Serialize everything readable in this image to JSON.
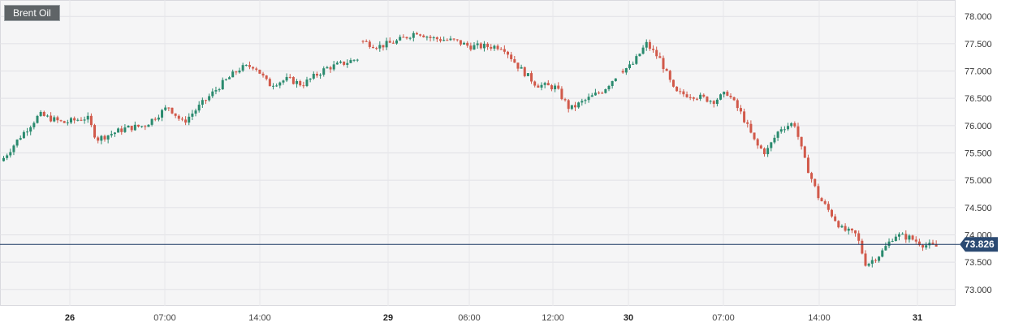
{
  "instrument": {
    "name": "Brent Oil"
  },
  "chart_data": {
    "type": "candlestick",
    "title": "Brent Oil",
    "ylim": [
      72.7,
      78.3
    ],
    "y_ticks": [
      73.0,
      73.5,
      74.0,
      74.5,
      75.0,
      75.5,
      76.0,
      76.5,
      77.0,
      77.5,
      78.0
    ],
    "y_tick_labels": [
      "73.000",
      "73.500",
      "74.000",
      "74.500",
      "75.000",
      "75.500",
      "76.000",
      "76.500",
      "77.000",
      "77.500",
      "78.000"
    ],
    "x_tick_labels": [
      "26",
      "07:00",
      "14:00",
      "29",
      "06:00",
      "12:00",
      "30",
      "07:00",
      "14:00",
      "31"
    ],
    "x_tick_bold": [
      true,
      false,
      false,
      true,
      false,
      false,
      true,
      false,
      false,
      true
    ],
    "last_price": 73.826,
    "last_price_label": "73.826",
    "grid": true,
    "colors": {
      "up": "#2a8a6e",
      "down": "#d1594a",
      "price_line": "#1d3a63",
      "price_tag": "#2b4a72"
    },
    "segments": [
      {
        "start": 0.0,
        "end": 0.376,
        "session": "26",
        "points": [
          [
            0,
            75.35
          ],
          [
            0.02,
            75.8
          ],
          [
            0.04,
            76.2
          ],
          [
            0.065,
            76.05
          ],
          [
            0.09,
            76.15
          ],
          [
            0.1,
            75.75
          ],
          [
            0.115,
            75.85
          ],
          [
            0.13,
            75.95
          ],
          [
            0.15,
            76.0
          ],
          [
            0.175,
            76.35
          ],
          [
            0.19,
            76.05
          ],
          [
            0.21,
            76.4
          ],
          [
            0.23,
            76.75
          ],
          [
            0.25,
            77.05
          ],
          [
            0.265,
            77.1
          ],
          [
            0.28,
            76.75
          ],
          [
            0.3,
            76.85
          ],
          [
            0.315,
            76.75
          ],
          [
            0.34,
            77.05
          ],
          [
            0.36,
            77.15
          ],
          [
            0.376,
            77.25
          ]
        ]
      },
      {
        "start": 0.376,
        "end": 0.648,
        "session": "29",
        "points": [
          [
            0.376,
            77.55
          ],
          [
            0.395,
            77.45
          ],
          [
            0.415,
            77.55
          ],
          [
            0.435,
            77.72
          ],
          [
            0.45,
            77.6
          ],
          [
            0.475,
            77.55
          ],
          [
            0.49,
            77.45
          ],
          [
            0.51,
            77.45
          ],
          [
            0.525,
            77.45
          ],
          [
            0.54,
            77.1
          ],
          [
            0.56,
            76.75
          ],
          [
            0.58,
            76.7
          ],
          [
            0.595,
            76.3
          ],
          [
            0.61,
            76.45
          ],
          [
            0.63,
            76.65
          ],
          [
            0.648,
            77.0
          ]
        ]
      },
      {
        "start": 0.648,
        "end": 1.0,
        "session": "30",
        "points": [
          [
            0.648,
            77.0
          ],
          [
            0.66,
            77.1
          ],
          [
            0.675,
            77.5
          ],
          [
            0.69,
            77.2
          ],
          [
            0.705,
            76.6
          ],
          [
            0.725,
            76.55
          ],
          [
            0.745,
            76.45
          ],
          [
            0.76,
            76.6
          ],
          [
            0.775,
            76.2
          ],
          [
            0.79,
            75.65
          ],
          [
            0.8,
            75.5
          ],
          [
            0.815,
            75.95
          ],
          [
            0.83,
            76.05
          ],
          [
            0.84,
            75.4
          ],
          [
            0.855,
            74.7
          ],
          [
            0.87,
            74.35
          ],
          [
            0.88,
            74.1
          ],
          [
            0.895,
            74.0
          ],
          [
            0.905,
            73.45
          ],
          [
            0.92,
            73.65
          ],
          [
            0.935,
            74.0
          ],
          [
            0.95,
            73.95
          ],
          [
            0.965,
            73.82
          ],
          [
            0.98,
            73.78
          ],
          [
            0.99,
            73.826
          ]
        ]
      }
    ]
  }
}
